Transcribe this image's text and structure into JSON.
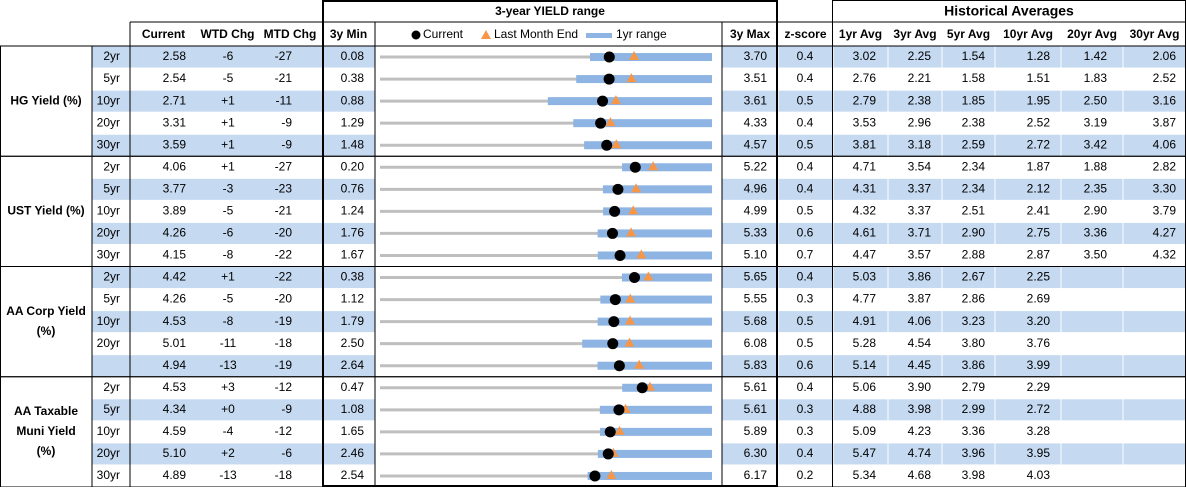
{
  "header": {
    "range_title": "3-year YIELD range",
    "hist_title": "Historical Averages",
    "columns": [
      "Current",
      "WTD Chg",
      "MTD Chg",
      "3y Min",
      "3y Max",
      "z-score",
      "1yr Avg",
      "3yr Avg",
      "5yr Avg",
      "10yr Avg",
      "20yr Avg",
      "30yr Avg"
    ],
    "legend": [
      "Current",
      "Last Month End",
      "1yr range"
    ]
  },
  "groups": [
    {
      "label": [
        "HG Yield (%)"
      ],
      "rows": [
        {
          "tenor": "2yr",
          "cells": [
            "2.58",
            "-6",
            "-27",
            "0.08",
            "3.70",
            "0.4",
            "3.02",
            "2.25",
            "1.54",
            "1.28",
            "1.42",
            "2.06"
          ],
          "last_month_end": 2.85,
          "yr1_range": [
            2.37,
            3.7
          ]
        },
        {
          "tenor": "5yr",
          "cells": [
            "2.54",
            "-5",
            "-21",
            "0.38",
            "3.51",
            "0.4",
            "2.76",
            "2.21",
            "1.58",
            "1.51",
            "1.83",
            "2.52"
          ],
          "last_month_end": 2.75,
          "yr1_range": [
            2.23,
            3.51
          ]
        },
        {
          "tenor": "10yr",
          "cells": [
            "2.71",
            "+1",
            "-11",
            "0.88",
            "3.61",
            "0.5",
            "2.79",
            "2.38",
            "1.85",
            "1.95",
            "2.50",
            "3.16"
          ],
          "last_month_end": 2.82,
          "yr1_range": [
            2.26,
            3.61
          ]
        },
        {
          "tenor": "20yr",
          "cells": [
            "3.31",
            "+1",
            "-9",
            "1.29",
            "4.33",
            "0.4",
            "3.53",
            "2.96",
            "2.38",
            "2.52",
            "3.19",
            "3.87"
          ],
          "last_month_end": 3.4,
          "yr1_range": [
            3.06,
            4.33
          ]
        },
        {
          "tenor": "30yr",
          "cells": [
            "3.59",
            "+1",
            "-9",
            "1.48",
            "4.57",
            "0.5",
            "3.81",
            "3.18",
            "2.59",
            "2.72",
            "3.42",
            "4.06"
          ],
          "last_month_end": 3.68,
          "yr1_range": [
            3.38,
            4.57
          ]
        }
      ]
    },
    {
      "label": [
        "UST Yield (%)"
      ],
      "rows": [
        {
          "tenor": "2yr",
          "cells": [
            "4.06",
            "+1",
            "-27",
            "0.20",
            "5.22",
            "0.4",
            "4.71",
            "3.54",
            "2.34",
            "1.87",
            "1.88",
            "2.82"
          ],
          "last_month_end": 4.33,
          "yr1_range": [
            3.86,
            5.22
          ]
        },
        {
          "tenor": "5yr",
          "cells": [
            "3.77",
            "-3",
            "-23",
            "0.76",
            "4.96",
            "0.4",
            "4.31",
            "3.37",
            "2.34",
            "2.12",
            "2.35",
            "3.30"
          ],
          "last_month_end": 4.0,
          "yr1_range": [
            3.58,
            4.96
          ]
        },
        {
          "tenor": "10yr",
          "cells": [
            "3.89",
            "-5",
            "-21",
            "1.24",
            "4.99",
            "0.5",
            "4.32",
            "3.37",
            "2.51",
            "2.41",
            "2.90",
            "3.79"
          ],
          "last_month_end": 4.1,
          "yr1_range": [
            3.76,
            4.99
          ]
        },
        {
          "tenor": "20yr",
          "cells": [
            "4.26",
            "-6",
            "-20",
            "1.76",
            "5.33",
            "0.6",
            "4.61",
            "3.71",
            "2.90",
            "2.75",
            "3.36",
            "4.27"
          ],
          "last_month_end": 4.46,
          "yr1_range": [
            4.1,
            5.33
          ]
        },
        {
          "tenor": "30yr",
          "cells": [
            "4.15",
            "-8",
            "-22",
            "1.67",
            "5.10",
            "0.7",
            "4.47",
            "3.57",
            "2.88",
            "2.87",
            "3.50",
            "4.32"
          ],
          "last_month_end": 4.37,
          "yr1_range": [
            3.92,
            5.1
          ]
        }
      ]
    },
    {
      "label": [
        "AA Corp Yield",
        "(%)"
      ],
      "rows": [
        {
          "tenor": "2yr",
          "cells": [
            "4.42",
            "+1",
            "-22",
            "0.38",
            "5.65",
            "0.4",
            "5.03",
            "3.86",
            "2.67",
            "2.25",
            null,
            null
          ],
          "last_month_end": 4.64,
          "yr1_range": [
            4.22,
            5.65
          ]
        },
        {
          "tenor": "5yr",
          "cells": [
            "4.26",
            "-5",
            "-20",
            "1.12",
            "5.55",
            "0.3",
            "4.77",
            "3.87",
            "2.86",
            "2.69",
            null,
            null
          ],
          "last_month_end": 4.46,
          "yr1_range": [
            4.06,
            5.55
          ]
        },
        {
          "tenor": "10yr",
          "cells": [
            "4.53",
            "-8",
            "-19",
            "1.79",
            "5.68",
            "0.5",
            "4.91",
            "4.06",
            "3.23",
            "3.20",
            null,
            null
          ],
          "last_month_end": 4.72,
          "yr1_range": [
            4.34,
            5.68
          ]
        },
        {
          "tenor": "20yr",
          "cells": [
            "5.01",
            "-11",
            "-18",
            "2.50",
            "6.08",
            "0.5",
            "5.28",
            "4.54",
            "3.80",
            "3.76",
            null,
            null
          ],
          "last_month_end": 5.19,
          "yr1_range": [
            4.68,
            6.08
          ]
        },
        {
          "tenor": null,
          "cells": [
            "4.94",
            "-13",
            "-19",
            "2.64",
            "5.83",
            "0.6",
            "5.14",
            "4.45",
            "3.86",
            "3.99",
            null,
            null
          ],
          "last_month_end": 5.13,
          "yr1_range": [
            4.73,
            5.83
          ]
        }
      ]
    },
    {
      "label": [
        "AA Taxable",
        "Muni Yield",
        "(%)"
      ],
      "rows": [
        {
          "tenor": "2yr",
          "cells": [
            "4.53",
            "+3",
            "-12",
            "0.47",
            "5.61",
            "0.4",
            "5.06",
            "3.90",
            "2.79",
            "2.29",
            null,
            null
          ],
          "last_month_end": 4.65,
          "yr1_range": [
            4.22,
            5.61
          ]
        },
        {
          "tenor": "5yr",
          "cells": [
            "4.34",
            "+0",
            "-9",
            "1.08",
            "5.61",
            "0.3",
            "4.88",
            "3.98",
            "2.99",
            "2.72",
            null,
            null
          ],
          "last_month_end": 4.43,
          "yr1_range": [
            4.08,
            5.61
          ]
        },
        {
          "tenor": "10yr",
          "cells": [
            "4.59",
            "-4",
            "-12",
            "1.65",
            "5.89",
            "0.3",
            "5.09",
            "4.23",
            "3.36",
            "3.28",
            null,
            null
          ],
          "last_month_end": 4.71,
          "yr1_range": [
            4.46,
            5.89
          ]
        },
        {
          "tenor": "20yr",
          "cells": [
            "5.10",
            "+2",
            "-6",
            "2.46",
            "6.30",
            "0.4",
            "5.47",
            "4.74",
            "3.96",
            "3.95",
            null,
            null
          ],
          "last_month_end": 5.16,
          "yr1_range": [
            4.98,
            6.3
          ]
        },
        {
          "tenor": "30yr",
          "cells": [
            "4.89",
            "-13",
            "-18",
            "2.54",
            "6.17",
            "0.2",
            "5.34",
            "4.68",
            "3.98",
            "4.03",
            null,
            null
          ],
          "last_month_end": 5.07,
          "yr1_range": [
            4.81,
            6.17
          ]
        }
      ]
    }
  ]
}
